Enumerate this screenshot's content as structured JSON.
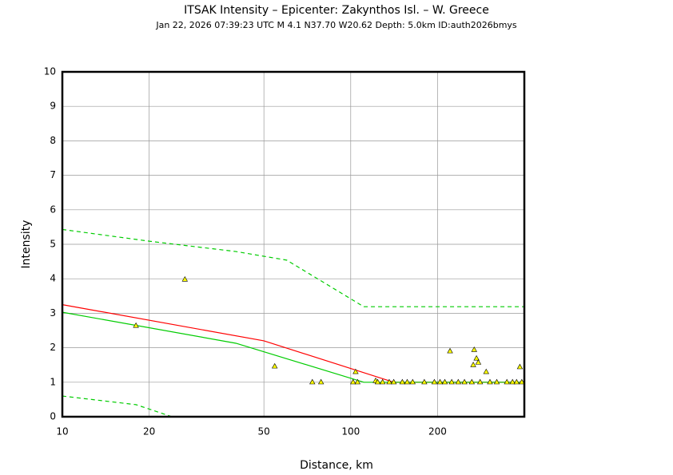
{
  "chart_data": {
    "type": "scatter",
    "title": "ITSAK Intensity –  Epicenter: Zakynthos Isl. – W. Greece",
    "subtitle": "Jan 22, 2026 07:39:23 UTC   M 4.1   N37.70 W20.62   Depth: 5.0km   ID:auth2026bmys",
    "x_label": "Distance, km",
    "y_label": "Intensity",
    "xscale": "log",
    "grid": true,
    "xlim": [
      10,
      400
    ],
    "ylim": [
      0,
      10
    ],
    "xticks": [
      10,
      20,
      50,
      100,
      200
    ],
    "yticks": [
      0,
      1,
      2,
      3,
      4,
      5,
      6,
      7,
      8,
      9,
      10
    ],
    "series": [
      {
        "type": "line",
        "color": "#00cc00",
        "dash": true,
        "x": [
          10,
          20,
          40,
          60,
          111,
          400
        ],
        "values": [
          5.43,
          5.09,
          4.79,
          4.54,
          3.19,
          3.19
        ]
      },
      {
        "type": "line",
        "color": "#00cc00",
        "dash": true,
        "x": [
          10,
          18,
          24
        ],
        "values": [
          0.6,
          0.35,
          0
        ]
      },
      {
        "type": "line",
        "color": "#ff0000",
        "dash": false,
        "x": [
          10,
          50,
          141,
          400
        ],
        "values": [
          3.25,
          2.2,
          1.0,
          1.0
        ]
      },
      {
        "type": "line",
        "color": "#00cc00",
        "dash": false,
        "x": [
          10,
          40,
          111,
          400
        ],
        "values": [
          3.03,
          2.13,
          1.0,
          1.0
        ]
      },
      {
        "type": "scatter",
        "color": "#ffff00",
        "x": [
          18,
          26.6,
          54.5,
          73.6,
          78.9,
          101.9,
          104,
          105.6,
          122,
          124,
          129,
          136,
          141,
          151,
          157,
          164,
          180,
          195,
          204,
          212,
          221,
          224,
          236,
          248,
          263,
          268,
          266,
          273,
          277,
          281,
          295,
          304,
          321,
          348,
          364,
          376,
          386,
          392
        ],
        "values": [
          2.64,
          3.98,
          1.46,
          1.0,
          1.0,
          1.0,
          1.3,
          1.0,
          1.04,
          1.0,
          1.0,
          1.0,
          1.0,
          1.0,
          1.0,
          1.0,
          1.0,
          1.0,
          1.0,
          1.0,
          1.9,
          1.0,
          1.0,
          1.0,
          1.0,
          1.94,
          1.5,
          1.69,
          1.57,
          1.0,
          1.3,
          1.0,
          1.0,
          1.0,
          1.0,
          1.0,
          1.44,
          1.0
        ]
      }
    ]
  }
}
